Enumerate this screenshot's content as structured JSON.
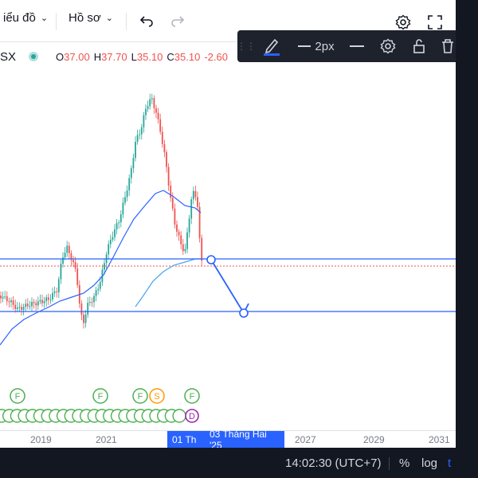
{
  "topbar": {
    "chart_menu_label": "iểu đồ",
    "profile_menu_label": "Hồ sơ",
    "undo_icon": "undo-icon",
    "redo_icon": "redo-icon",
    "settings_icon": "gear-icon",
    "fullscreen_icon": "fullscreen-icon"
  },
  "drawing_toolbar": {
    "pen_icon": "pencil-icon",
    "line_width_label": "2px",
    "line_style_icon": "line-style-icon",
    "settings_icon": "gear-icon",
    "lock_icon": "unlock-icon",
    "delete_icon": "trash-icon",
    "pen_color": "#2962ff"
  },
  "legend": {
    "symbol": "SX",
    "open_label": "O",
    "open_value": "37.00",
    "high_label": "H",
    "high_value": "37.70",
    "low_label": "L",
    "low_value": "35.10",
    "close_label": "C",
    "close_value": "35.10",
    "change_value": "-2.60"
  },
  "colors": {
    "up": "#26a69a",
    "down": "#ef5350",
    "ma": "#2962ff",
    "ma_light": "#42a5f5",
    "badge_f": "#4caf50",
    "badge_s": "#ff9800",
    "badge_d": "#9c27b0"
  },
  "time_axis": {
    "labels": [
      "2019",
      "2021",
      "2027",
      "2029",
      "2031"
    ],
    "crosshair_date_a": "01 Th",
    "crosshair_date_b": "03 Tháng Hai '25"
  },
  "bottom_bar": {
    "time": "14:02:30 (UTC+7)",
    "percent_label": "%",
    "log_label": "log",
    "auto_label": "t"
  },
  "events": {
    "upper_badges": [
      "F",
      "F",
      "F",
      "S",
      "F"
    ],
    "special_lower_badge": "D"
  },
  "chart_data": {
    "type": "candlestick",
    "x_axis_ticks": [
      "2019",
      "2021",
      "2027",
      "2029",
      "2031"
    ],
    "last_close": 35.1,
    "annotations": [
      "horizontal-line",
      "horizontal-line",
      "trend-line"
    ]
  }
}
